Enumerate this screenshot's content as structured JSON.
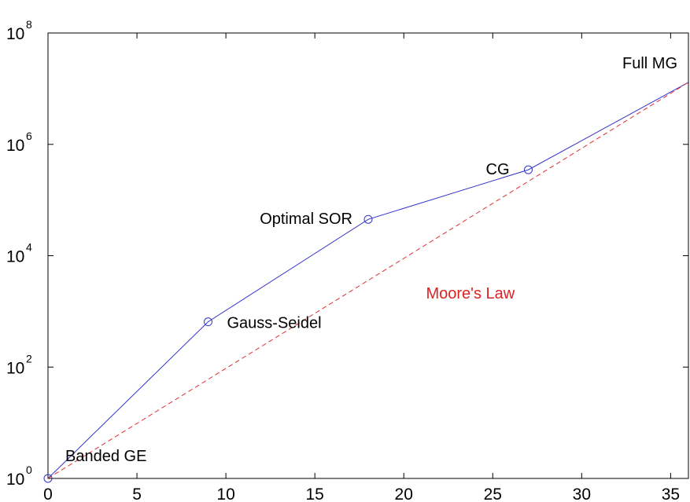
{
  "chart_data": {
    "type": "line",
    "title": "",
    "xlabel": "",
    "ylabel": "",
    "xlim": [
      0,
      36
    ],
    "ylim": [
      1,
      100000000
    ],
    "yscale": "log",
    "grid": false,
    "x_ticks": [
      0,
      5,
      10,
      15,
      20,
      25,
      30,
      35
    ],
    "y_ticks": [
      {
        "base": "10",
        "exp": "0",
        "value": 1
      },
      {
        "base": "10",
        "exp": "2",
        "value": 100
      },
      {
        "base": "10",
        "exp": "4",
        "value": 10000
      },
      {
        "base": "10",
        "exp": "6",
        "value": 1000000
      },
      {
        "base": "10",
        "exp": "8",
        "value": 100000000
      }
    ],
    "series": [
      {
        "color": "#3333cc",
        "style": "solid",
        "marker": "circle",
        "points": [
          {
            "x": 0,
            "y": 1,
            "label": "Banded GE"
          },
          {
            "x": 9,
            "y": 650,
            "label": "Gauss-Seidel"
          },
          {
            "x": 18,
            "y": 45000,
            "label": "Optimal SOR"
          },
          {
            "x": 27,
            "y": 350000,
            "label": "CG"
          },
          {
            "x": 36,
            "y": 13000000,
            "label": "Full MG"
          }
        ]
      },
      {
        "name": "Moore's Law",
        "color": "#e03030",
        "style": "dashed",
        "points": [
          {
            "x": 0,
            "y": 1
          },
          {
            "x": 36,
            "y": 13000000
          }
        ]
      }
    ],
    "annotations": [
      {
        "text": "Moore's Law",
        "x": 22,
        "y": 1700,
        "color": "#dd2222"
      }
    ]
  }
}
